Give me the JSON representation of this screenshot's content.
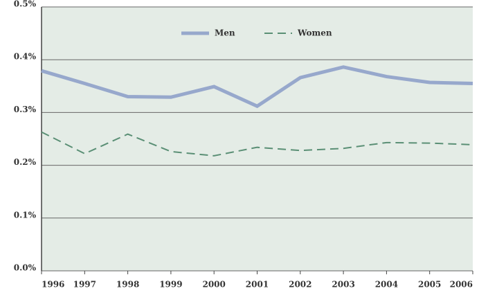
{
  "chart_data": {
    "type": "line",
    "x": [
      1996,
      1997,
      1998,
      1999,
      2000,
      2001,
      2002,
      2003,
      2004,
      2005,
      2006
    ],
    "xlim": [
      1996,
      2006
    ],
    "xticks": [
      1996,
      1997,
      1998,
      1999,
      2000,
      2001,
      2002,
      2003,
      2004,
      2005,
      2006
    ],
    "ylim": [
      0,
      0.5
    ],
    "yticks": [
      {
        "value": 0,
        "label": "0.0%"
      },
      {
        "value": 0.1,
        "label": "0.1%"
      },
      {
        "value": 0.2,
        "label": "0.2%"
      },
      {
        "value": 0.3,
        "label": "0.3%"
      },
      {
        "value": 0.4,
        "label": "0.4%"
      },
      {
        "value": 0.5,
        "label": "0.5%"
      }
    ],
    "grid": true,
    "legend": "top",
    "series": [
      {
        "name": "Men",
        "color": "#97a8cc",
        "dash": false,
        "values": [
          0.379,
          0.355,
          0.33,
          0.329,
          0.349,
          0.312,
          0.366,
          0.386,
          0.368,
          0.357,
          0.355
        ]
      },
      {
        "name": "Women",
        "color": "#5a8f75",
        "dash": true,
        "values": [
          0.263,
          0.222,
          0.259,
          0.226,
          0.218,
          0.234,
          0.228,
          0.232,
          0.243,
          0.242,
          0.239
        ]
      }
    ]
  }
}
